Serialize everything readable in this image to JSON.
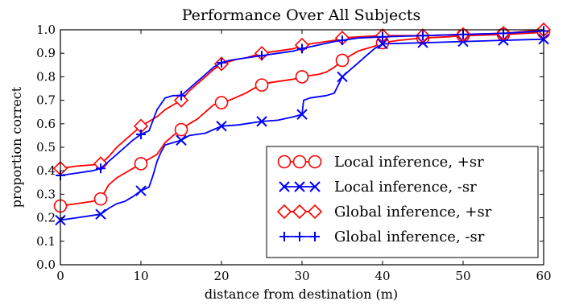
{
  "chart_data": {
    "type": "line",
    "title": "Performance Over All Subjects",
    "xlabel": "distance from destination (m)",
    "ylabel": "proportion correct",
    "xlim": [
      0,
      60
    ],
    "ylim": [
      0,
      1.0
    ],
    "xticks": [
      0,
      10,
      20,
      30,
      40,
      50,
      60
    ],
    "yticks": [
      0.0,
      0.1,
      0.2,
      0.3,
      0.4,
      0.5,
      0.6,
      0.7,
      0.8,
      0.9,
      1.0
    ],
    "xtick_labels": [
      "0",
      "10",
      "20",
      "30",
      "40",
      "50",
      "60"
    ],
    "ytick_labels": [
      "0.0",
      "0.1",
      "0.2",
      "0.3",
      "0.4",
      "0.5",
      "0.6",
      "0.7",
      "0.8",
      "0.9",
      "1.0"
    ],
    "grid": false,
    "legend_position": "lower-right",
    "marker_x": [
      0,
      5,
      10,
      15,
      20,
      25,
      30,
      35,
      40,
      45,
      50,
      55,
      60
    ],
    "series": [
      {
        "name": "Local inference, +sr",
        "color": "#ff0000",
        "marker": "circle",
        "x": [
          0,
          1,
          2,
          3,
          4,
          5,
          5.5,
          6,
          7,
          8,
          9,
          10,
          11,
          12,
          13,
          14,
          15,
          16,
          17,
          18,
          19,
          20,
          21,
          22,
          23,
          24,
          25,
          26,
          27,
          28,
          29,
          30,
          31,
          32,
          33,
          34,
          35,
          36,
          37,
          38,
          39,
          40,
          42,
          45,
          48,
          50,
          55,
          58,
          60
        ],
        "y": [
          0.25,
          0.255,
          0.26,
          0.265,
          0.27,
          0.28,
          0.31,
          0.34,
          0.37,
          0.39,
          0.41,
          0.43,
          0.45,
          0.47,
          0.52,
          0.55,
          0.575,
          0.6,
          0.62,
          0.65,
          0.68,
          0.69,
          0.7,
          0.715,
          0.73,
          0.75,
          0.765,
          0.775,
          0.78,
          0.785,
          0.79,
          0.8,
          0.805,
          0.81,
          0.82,
          0.84,
          0.87,
          0.89,
          0.91,
          0.92,
          0.93,
          0.945,
          0.955,
          0.965,
          0.97,
          0.975,
          0.98,
          0.985,
          0.99
        ]
      },
      {
        "name": "Local inference, -sr",
        "color": "#0000ff",
        "marker": "x",
        "x": [
          0,
          2,
          4,
          5,
          6,
          7,
          8,
          9,
          10,
          11,
          11.5,
          12,
          12.5,
          13,
          14,
          15,
          16,
          18,
          20,
          22,
          25,
          27,
          29,
          30,
          30.2,
          31,
          33,
          34,
          35,
          36,
          37,
          38,
          39,
          40,
          45,
          50,
          55,
          60
        ],
        "y": [
          0.19,
          0.2,
          0.21,
          0.215,
          0.24,
          0.26,
          0.27,
          0.29,
          0.315,
          0.33,
          0.38,
          0.44,
          0.48,
          0.51,
          0.52,
          0.53,
          0.55,
          0.56,
          0.59,
          0.595,
          0.61,
          0.615,
          0.63,
          0.64,
          0.7,
          0.71,
          0.72,
          0.73,
          0.8,
          0.83,
          0.86,
          0.89,
          0.92,
          0.94,
          0.945,
          0.95,
          0.955,
          0.96
        ]
      },
      {
        "name": "Global inference, +sr",
        "color": "#ff0000",
        "marker": "diamond",
        "x": [
          0,
          2,
          4,
          5,
          6,
          7,
          8,
          9,
          10,
          11,
          12,
          13,
          14,
          15,
          16,
          17,
          18,
          19,
          20,
          21,
          22,
          23,
          25,
          27,
          29,
          30,
          32,
          34,
          35,
          37,
          40,
          45,
          50,
          55,
          60
        ],
        "y": [
          0.41,
          0.42,
          0.425,
          0.43,
          0.46,
          0.5,
          0.53,
          0.56,
          0.59,
          0.61,
          0.63,
          0.66,
          0.68,
          0.7,
          0.74,
          0.77,
          0.8,
          0.83,
          0.855,
          0.865,
          0.875,
          0.88,
          0.9,
          0.91,
          0.92,
          0.935,
          0.945,
          0.955,
          0.965,
          0.97,
          0.975,
          0.975,
          0.98,
          0.985,
          1.0
        ]
      },
      {
        "name": "Global inference, -sr",
        "color": "#0000ff",
        "marker": "plus",
        "x": [
          0,
          2,
          4,
          5,
          6,
          7,
          8,
          9,
          10,
          11,
          12,
          13,
          14,
          15,
          16,
          17,
          18,
          19,
          20,
          21,
          22,
          23,
          25,
          27,
          29,
          30,
          32,
          34,
          35,
          37,
          40,
          45,
          50,
          55,
          60
        ],
        "y": [
          0.38,
          0.39,
          0.4,
          0.41,
          0.44,
          0.47,
          0.5,
          0.53,
          0.555,
          0.57,
          0.66,
          0.71,
          0.72,
          0.72,
          0.75,
          0.78,
          0.81,
          0.84,
          0.86,
          0.87,
          0.875,
          0.88,
          0.89,
          0.9,
          0.91,
          0.92,
          0.935,
          0.95,
          0.955,
          0.965,
          0.97,
          0.975,
          0.98,
          0.985,
          0.995
        ]
      }
    ]
  }
}
